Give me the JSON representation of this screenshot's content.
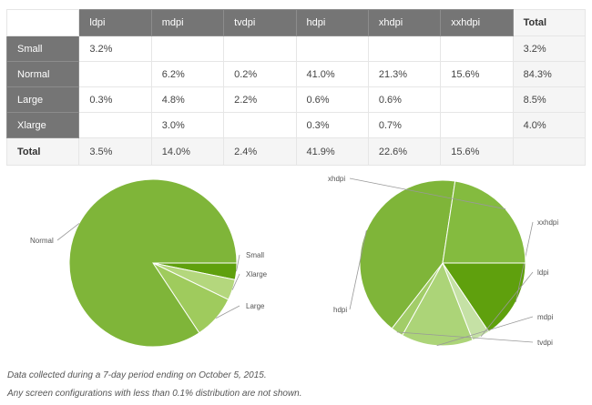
{
  "table": {
    "columns": [
      "ldpi",
      "mdpi",
      "tvdpi",
      "hdpi",
      "xhdpi",
      "xxhdpi"
    ],
    "total_header": "Total",
    "rows": [
      {
        "label": "Small",
        "cells": [
          "3.2%",
          "",
          "",
          "",
          "",
          ""
        ],
        "total": "3.2%"
      },
      {
        "label": "Normal",
        "cells": [
          "",
          "6.2%",
          "0.2%",
          "41.0%",
          "21.3%",
          "15.6%"
        ],
        "total": "84.3%"
      },
      {
        "label": "Large",
        "cells": [
          "0.3%",
          "4.8%",
          "2.2%",
          "0.6%",
          "0.6%",
          ""
        ],
        "total": "8.5%"
      },
      {
        "label": "Xlarge",
        "cells": [
          "",
          "3.0%",
          "",
          "0.3%",
          "0.7%",
          ""
        ],
        "total": "4.0%"
      }
    ],
    "totals_row": {
      "label": "Total",
      "cells": [
        "3.5%",
        "14.0%",
        "2.4%",
        "41.9%",
        "22.6%",
        "15.6%"
      ]
    }
  },
  "chart_data": [
    {
      "type": "pie",
      "slices": [
        {
          "label": "Small",
          "value": 3.2,
          "color": "#5fa00d"
        },
        {
          "label": "Xlarge",
          "value": 4.0,
          "color": "#b4d77d"
        },
        {
          "label": "Large",
          "value": 8.5,
          "color": "#9fcb5d"
        },
        {
          "label": "Normal",
          "value": 84.3,
          "color": "#7fb539"
        }
      ]
    },
    {
      "type": "pie",
      "slices": [
        {
          "label": "xxhdpi",
          "value": 15.6,
          "color": "#5fa00d"
        },
        {
          "label": "ldpi",
          "value": 3.5,
          "color": "#c5e1a5"
        },
        {
          "label": "mdpi",
          "value": 14.0,
          "color": "#acd478"
        },
        {
          "label": "tvdpi",
          "value": 2.4,
          "color": "#a2cd68"
        },
        {
          "label": "hdpi",
          "value": 41.9,
          "color": "#7fb539"
        },
        {
          "label": "xhdpi",
          "value": 22.6,
          "color": "#84bb3f"
        }
      ]
    }
  ],
  "notes": {
    "line1": "Data collected during a 7-day period ending on October 5, 2015.",
    "line2": "Any screen configurations with less than 0.1% distribution are not shown."
  }
}
